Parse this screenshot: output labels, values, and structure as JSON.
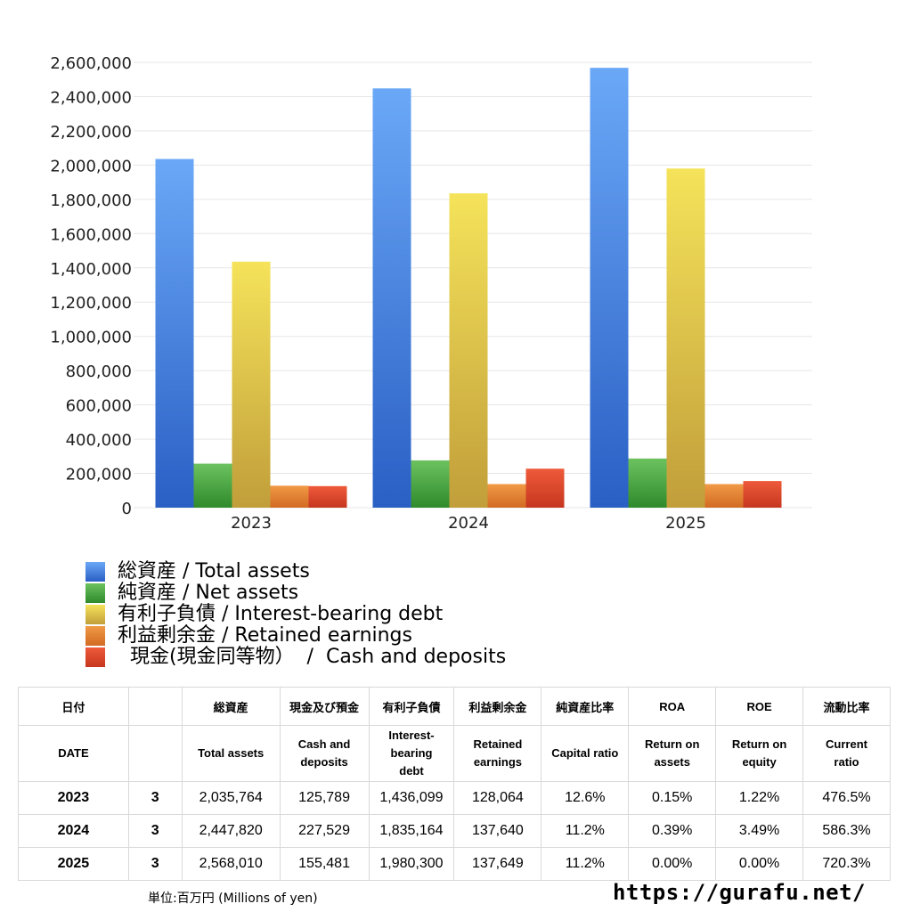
{
  "chart_data": {
    "type": "bar",
    "categories": [
      "2023",
      "2024",
      "2025"
    ],
    "ylim": [
      0,
      2600000
    ],
    "yticks": [
      0,
      200000,
      400000,
      600000,
      800000,
      1000000,
      1200000,
      1400000,
      1600000,
      1800000,
      2000000,
      2200000,
      2400000,
      2600000
    ],
    "ytick_labels": [
      "0",
      "200,000",
      "400,000",
      "600,000",
      "800,000",
      "1,000,000",
      "1,200,000",
      "1,400,000",
      "1,600,000",
      "1,800,000",
      "2,000,000",
      "2,200,000",
      "2,400,000",
      "2,600,000"
    ],
    "grid": true,
    "legend_position": "bottom-left",
    "series": [
      {
        "name": "総資産 / Total assets",
        "values": [
          2035764,
          2447820,
          2568010
        ],
        "color_top": "#6aa8f7",
        "color_bottom": "#2a5fc4"
      },
      {
        "name": "純資産 / Net assets",
        "values": [
          257000,
          276000,
          287000
        ],
        "color_top": "#6cc25f",
        "color_bottom": "#2f8a2b"
      },
      {
        "name": "有利子負債 / Interest-bearing debt",
        "values": [
          1436099,
          1835164,
          1980300
        ],
        "color_top": "#f5e35a",
        "color_bottom": "#c19e3a"
      },
      {
        "name": "利益剰余金 / Retained earnings",
        "values": [
          128064,
          137640,
          137649
        ],
        "color_top": "#f09a45",
        "color_bottom": "#d26a23"
      },
      {
        "name": "  現金(現金同等物）  /  Cash and deposits",
        "values": [
          125789,
          227529,
          155481
        ],
        "color_top": "#ee5a3a",
        "color_bottom": "#c6361f"
      }
    ]
  },
  "table": {
    "header_jp": [
      "日付",
      "",
      "総資産",
      "現金及び預金",
      "有利子負債",
      "利益剰余金",
      "純資産比率",
      "ROA",
      "ROE",
      "流動比率"
    ],
    "header_en": [
      "DATE",
      "",
      "Total assets",
      "Cash and\ndeposits",
      "Interest-\nbearing\ndebt",
      "Retained\nearnings",
      "Capital ratio",
      "Return on\nassets",
      "Return on\nequity",
      "Current\nratio"
    ],
    "rows": [
      {
        "date": "2023",
        "month": "3",
        "values": [
          "2,035,764",
          "125,789",
          "1,436,099",
          "128,064",
          "12.6%",
          "0.15%",
          "1.22%",
          "476.5%"
        ]
      },
      {
        "date": "2024",
        "month": "3",
        "values": [
          "2,447,820",
          "227,529",
          "1,835,164",
          "137,640",
          "11.2%",
          "0.39%",
          "3.49%",
          "586.3%"
        ]
      },
      {
        "date": "2025",
        "month": "3",
        "values": [
          "2,568,010",
          "155,481",
          "1,980,300",
          "137,649",
          "11.2%",
          "0.00%",
          "0.00%",
          "720.3%"
        ]
      }
    ]
  },
  "footer": {
    "unit": "単位:百万円 (Millions of yen)",
    "source": "https://gurafu.net/"
  }
}
